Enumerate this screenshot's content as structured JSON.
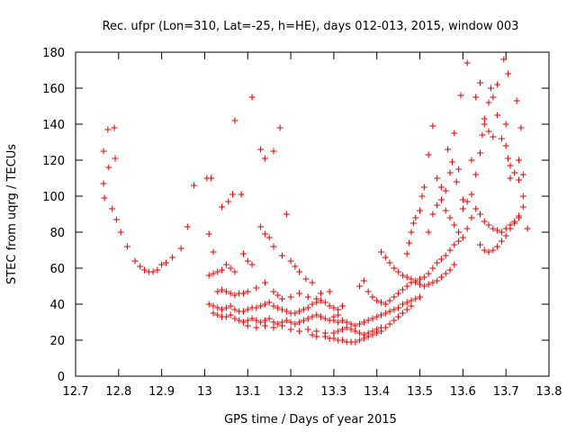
{
  "chart_data": {
    "type": "scatter",
    "title": "Rec. ufpr (Lon=310, Lat=-25, h=HE), days 012-013, 2015, window 003",
    "xlabel": "GPS time / Days of year 2015",
    "ylabel": "STEC from uqrg / TECUs",
    "xlim": [
      12.7,
      13.8
    ],
    "ylim": [
      0,
      180
    ],
    "xticks": [
      "12.7",
      "12.8",
      "12.9",
      "13",
      "13.1",
      "13.2",
      "13.3",
      "13.4",
      "13.5",
      "13.6",
      "13.7",
      "13.8"
    ],
    "yticks": [
      "0",
      "20",
      "40",
      "60",
      "80",
      "100",
      "120",
      "140",
      "160",
      "180"
    ],
    "grid": false,
    "marker": "plus",
    "color": "#e00000",
    "points": [
      [
        12.765,
        125
      ],
      [
        12.765,
        107
      ],
      [
        12.767,
        99
      ],
      [
        12.775,
        137
      ],
      [
        12.777,
        116
      ],
      [
        12.785,
        93
      ],
      [
        12.79,
        138
      ],
      [
        12.792,
        121
      ],
      [
        12.795,
        87
      ],
      [
        12.805,
        80
      ],
      [
        12.82,
        72
      ],
      [
        12.838,
        64
      ],
      [
        12.85,
        61
      ],
      [
        12.86,
        59
      ],
      [
        12.87,
        58
      ],
      [
        12.88,
        58
      ],
      [
        12.89,
        59
      ],
      [
        12.9,
        62
      ],
      [
        12.91,
        63
      ],
      [
        12.925,
        66
      ],
      [
        12.945,
        71
      ],
      [
        12.96,
        83
      ],
      [
        12.975,
        106
      ],
      [
        13.005,
        110
      ],
      [
        13.01,
        79
      ],
      [
        13.015,
        110
      ],
      [
        13.02,
        69
      ],
      [
        13.04,
        94
      ],
      [
        13.055,
        97
      ],
      [
        13.065,
        101
      ],
      [
        13.07,
        142
      ],
      [
        13.085,
        101
      ],
      [
        13.11,
        155
      ],
      [
        13.13,
        126
      ],
      [
        13.14,
        121
      ],
      [
        13.16,
        125
      ],
      [
        13.175,
        138
      ],
      [
        13.19,
        90
      ],
      [
        13.13,
        83
      ],
      [
        13.14,
        79
      ],
      [
        13.15,
        77
      ],
      [
        13.16,
        72
      ],
      [
        13.18,
        67
      ],
      [
        13.2,
        64
      ],
      [
        13.21,
        61
      ],
      [
        13.22,
        58
      ],
      [
        13.235,
        54
      ],
      [
        13.25,
        52
      ],
      [
        13.01,
        56
      ],
      [
        13.02,
        57
      ],
      [
        13.03,
        58
      ],
      [
        13.04,
        59
      ],
      [
        13.05,
        62
      ],
      [
        13.06,
        60
      ],
      [
        13.07,
        58
      ],
      [
        13.09,
        68
      ],
      [
        13.1,
        64
      ],
      [
        13.11,
        62
      ],
      [
        13.03,
        47
      ],
      [
        13.04,
        48
      ],
      [
        13.05,
        47
      ],
      [
        13.06,
        46
      ],
      [
        13.07,
        45
      ],
      [
        13.08,
        46
      ],
      [
        13.09,
        46
      ],
      [
        13.1,
        47
      ],
      [
        13.12,
        49
      ],
      [
        13.14,
        52
      ],
      [
        13.16,
        47
      ],
      [
        13.17,
        45
      ],
      [
        13.18,
        43
      ],
      [
        13.2,
        44
      ],
      [
        13.22,
        46
      ],
      [
        13.24,
        44
      ],
      [
        13.26,
        43
      ],
      [
        13.27,
        46
      ],
      [
        13.29,
        47
      ],
      [
        13.01,
        40
      ],
      [
        13.02,
        39
      ],
      [
        13.03,
        38
      ],
      [
        13.04,
        37
      ],
      [
        13.05,
        38
      ],
      [
        13.06,
        39
      ],
      [
        13.07,
        37
      ],
      [
        13.08,
        36
      ],
      [
        13.09,
        36
      ],
      [
        13.1,
        37
      ],
      [
        13.11,
        38
      ],
      [
        13.12,
        38
      ],
      [
        13.13,
        39
      ],
      [
        13.14,
        40
      ],
      [
        13.15,
        41
      ],
      [
        13.16,
        39
      ],
      [
        13.17,
        38
      ],
      [
        13.18,
        37
      ],
      [
        13.19,
        36
      ],
      [
        13.2,
        35
      ],
      [
        13.21,
        35
      ],
      [
        13.22,
        36
      ],
      [
        13.23,
        37
      ],
      [
        13.24,
        38
      ],
      [
        13.25,
        40
      ],
      [
        13.26,
        41
      ],
      [
        13.27,
        42
      ],
      [
        13.28,
        41
      ],
      [
        13.29,
        39
      ],
      [
        13.3,
        38
      ],
      [
        13.31,
        37
      ],
      [
        13.32,
        39
      ],
      [
        13.02,
        35
      ],
      [
        13.03,
        34
      ],
      [
        13.04,
        33
      ],
      [
        13.05,
        33
      ],
      [
        13.06,
        34
      ],
      [
        13.07,
        32
      ],
      [
        13.08,
        31
      ],
      [
        13.09,
        30
      ],
      [
        13.1,
        31
      ],
      [
        13.11,
        32
      ],
      [
        13.12,
        31
      ],
      [
        13.13,
        30
      ],
      [
        13.14,
        31
      ],
      [
        13.15,
        32
      ],
      [
        13.16,
        30
      ],
      [
        13.17,
        29
      ],
      [
        13.18,
        30
      ],
      [
        13.19,
        31
      ],
      [
        13.2,
        30
      ],
      [
        13.21,
        29
      ],
      [
        13.22,
        30
      ],
      [
        13.23,
        31
      ],
      [
        13.24,
        32
      ],
      [
        13.25,
        33
      ],
      [
        13.26,
        34
      ],
      [
        13.27,
        33
      ],
      [
        13.28,
        32
      ],
      [
        13.29,
        31
      ],
      [
        13.3,
        33
      ],
      [
        13.31,
        34
      ],
      [
        13.1,
        28
      ],
      [
        13.12,
        27
      ],
      [
        13.14,
        28
      ],
      [
        13.16,
        27
      ],
      [
        13.18,
        28
      ],
      [
        13.2,
        26
      ],
      [
        13.22,
        25
      ],
      [
        13.24,
        26
      ],
      [
        13.26,
        25
      ],
      [
        13.28,
        24
      ],
      [
        13.3,
        24
      ],
      [
        13.31,
        25
      ],
      [
        13.32,
        26
      ],
      [
        13.33,
        27
      ],
      [
        13.34,
        26
      ],
      [
        13.35,
        25
      ],
      [
        13.36,
        24
      ],
      [
        13.37,
        23
      ],
      [
        13.38,
        24
      ],
      [
        13.39,
        25
      ],
      [
        13.4,
        26
      ],
      [
        13.41,
        27
      ],
      [
        13.25,
        23
      ],
      [
        13.26,
        22
      ],
      [
        13.28,
        22
      ],
      [
        13.29,
        21
      ],
      [
        13.3,
        21
      ],
      [
        13.31,
        20
      ],
      [
        13.32,
        20
      ],
      [
        13.33,
        19
      ],
      [
        13.34,
        19
      ],
      [
        13.35,
        19
      ],
      [
        13.36,
        20
      ],
      [
        13.37,
        21
      ],
      [
        13.38,
        22
      ],
      [
        13.39,
        23
      ],
      [
        13.4,
        24
      ],
      [
        13.41,
        25
      ],
      [
        13.42,
        27
      ],
      [
        13.43,
        29
      ],
      [
        13.44,
        31
      ],
      [
        13.45,
        33
      ],
      [
        13.46,
        35
      ],
      [
        13.47,
        37
      ],
      [
        13.48,
        39
      ],
      [
        13.3,
        31
      ],
      [
        13.31,
        30
      ],
      [
        13.32,
        31
      ],
      [
        13.33,
        30
      ],
      [
        13.34,
        29
      ],
      [
        13.35,
        28
      ],
      [
        13.36,
        29
      ],
      [
        13.37,
        30
      ],
      [
        13.38,
        31
      ],
      [
        13.39,
        32
      ],
      [
        13.4,
        33
      ],
      [
        13.41,
        34
      ],
      [
        13.42,
        35
      ],
      [
        13.43,
        36
      ],
      [
        13.44,
        37
      ],
      [
        13.45,
        38
      ],
      [
        13.46,
        40
      ],
      [
        13.47,
        41
      ],
      [
        13.48,
        42
      ],
      [
        13.49,
        43
      ],
      [
        13.5,
        44
      ],
      [
        13.36,
        50
      ],
      [
        13.37,
        53
      ],
      [
        13.38,
        47
      ],
      [
        13.39,
        44
      ],
      [
        13.4,
        42
      ],
      [
        13.41,
        41
      ],
      [
        13.42,
        40
      ],
      [
        13.43,
        42
      ],
      [
        13.44,
        44
      ],
      [
        13.45,
        46
      ],
      [
        13.46,
        48
      ],
      [
        13.47,
        50
      ],
      [
        13.48,
        52
      ],
      [
        13.49,
        53
      ],
      [
        13.5,
        54
      ],
      [
        13.51,
        55
      ],
      [
        13.52,
        57
      ],
      [
        13.53,
        60
      ],
      [
        13.54,
        63
      ],
      [
        13.55,
        65
      ],
      [
        13.56,
        67
      ],
      [
        13.57,
        70
      ],
      [
        13.58,
        73
      ],
      [
        13.59,
        75
      ],
      [
        13.41,
        69
      ],
      [
        13.42,
        66
      ],
      [
        13.43,
        63
      ],
      [
        13.44,
        60
      ],
      [
        13.45,
        58
      ],
      [
        13.46,
        56
      ],
      [
        13.47,
        55
      ],
      [
        13.48,
        54
      ],
      [
        13.49,
        52
      ],
      [
        13.5,
        51
      ],
      [
        13.51,
        50
      ],
      [
        13.52,
        51
      ],
      [
        13.53,
        52
      ],
      [
        13.54,
        53
      ],
      [
        13.55,
        55
      ],
      [
        13.56,
        57
      ],
      [
        13.57,
        59
      ],
      [
        13.58,
        62
      ],
      [
        13.47,
        68
      ],
      [
        13.475,
        74
      ],
      [
        13.48,
        80
      ],
      [
        13.485,
        85
      ],
      [
        13.49,
        88
      ],
      [
        13.5,
        92
      ],
      [
        13.505,
        100
      ],
      [
        13.51,
        105
      ],
      [
        13.52,
        123
      ],
      [
        13.53,
        139
      ],
      [
        13.54,
        110
      ],
      [
        13.55,
        105
      ],
      [
        13.56,
        103
      ],
      [
        13.565,
        126
      ],
      [
        13.57,
        113
      ],
      [
        13.575,
        119
      ],
      [
        13.58,
        135
      ],
      [
        13.585,
        108
      ],
      [
        13.59,
        115
      ],
      [
        13.595,
        156
      ],
      [
        13.6,
        98
      ],
      [
        13.61,
        174
      ],
      [
        13.52,
        80
      ],
      [
        13.53,
        90
      ],
      [
        13.54,
        95
      ],
      [
        13.55,
        98
      ],
      [
        13.56,
        92
      ],
      [
        13.57,
        88
      ],
      [
        13.58,
        84
      ],
      [
        13.59,
        80
      ],
      [
        13.6,
        77
      ],
      [
        13.61,
        82
      ],
      [
        13.62,
        88
      ],
      [
        13.63,
        93
      ],
      [
        13.64,
        90
      ],
      [
        13.65,
        86
      ],
      [
        13.66,
        84
      ],
      [
        13.67,
        82
      ],
      [
        13.68,
        81
      ],
      [
        13.69,
        80
      ],
      [
        13.7,
        82
      ],
      [
        13.71,
        84
      ],
      [
        13.72,
        86
      ],
      [
        13.73,
        88
      ],
      [
        13.6,
        93
      ],
      [
        13.61,
        97
      ],
      [
        13.62,
        101
      ],
      [
        13.63,
        112
      ],
      [
        13.64,
        124
      ],
      [
        13.645,
        134
      ],
      [
        13.65,
        143
      ],
      [
        13.66,
        152
      ],
      [
        13.665,
        160
      ],
      [
        13.67,
        155
      ],
      [
        13.68,
        145
      ],
      [
        13.69,
        132
      ],
      [
        13.7,
        128
      ],
      [
        13.705,
        121
      ],
      [
        13.71,
        117
      ],
      [
        13.72,
        113
      ],
      [
        13.73,
        109
      ],
      [
        13.735,
        138
      ],
      [
        13.74,
        100
      ],
      [
        13.64,
        73
      ],
      [
        13.65,
        70
      ],
      [
        13.66,
        69
      ],
      [
        13.67,
        70
      ],
      [
        13.68,
        72
      ],
      [
        13.69,
        75
      ],
      [
        13.7,
        78
      ],
      [
        13.71,
        82
      ],
      [
        13.72,
        85
      ],
      [
        13.73,
        89
      ],
      [
        13.74,
        94
      ],
      [
        13.75,
        82
      ],
      [
        13.62,
        120
      ],
      [
        13.63,
        155
      ],
      [
        13.64,
        163
      ],
      [
        13.65,
        140
      ],
      [
        13.66,
        136
      ],
      [
        13.67,
        133
      ],
      [
        13.68,
        162
      ],
      [
        13.695,
        176
      ],
      [
        13.7,
        140
      ],
      [
        13.705,
        168
      ],
      [
        13.71,
        110
      ],
      [
        13.725,
        153
      ],
      [
        13.73,
        120
      ],
      [
        13.74,
        112
      ]
    ]
  }
}
